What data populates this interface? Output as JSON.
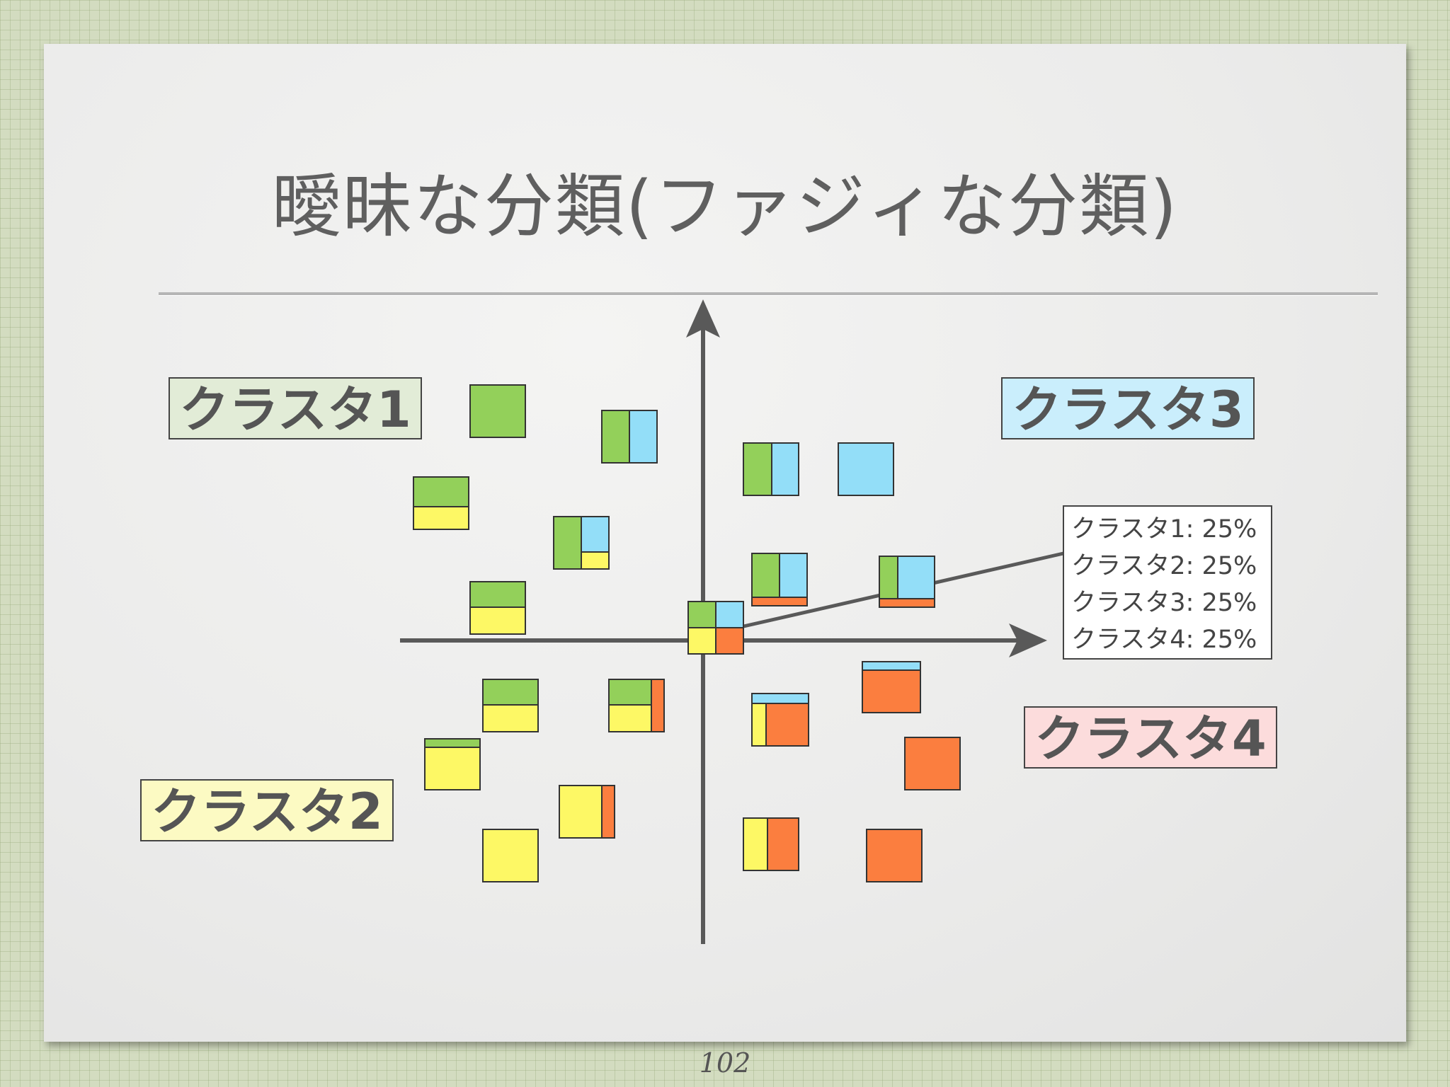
{
  "title": "曖昧な分類(ファジィな分類)",
  "page_number": "102",
  "clusters": [
    {
      "label": "クラスタ1",
      "color": "#e2ecd7"
    },
    {
      "label": "クラスタ2",
      "color": "#fcfac3"
    },
    {
      "label": "クラスタ3",
      "color": "#caeefc"
    },
    {
      "label": "クラスタ4",
      "color": "#fcdcdc"
    }
  ],
  "legend": [
    "クラスタ1: 25%",
    "クラスタ2: 25%",
    "クラスタ3: 25%",
    "クラスタ4: 25%"
  ],
  "colors": {
    "cluster1_green": "#93d05a",
    "cluster2_yellow": "#fdf865",
    "cluster3_blue": "#93def8",
    "cluster4_orange": "#fb7e3f",
    "axis": "#595959"
  }
}
